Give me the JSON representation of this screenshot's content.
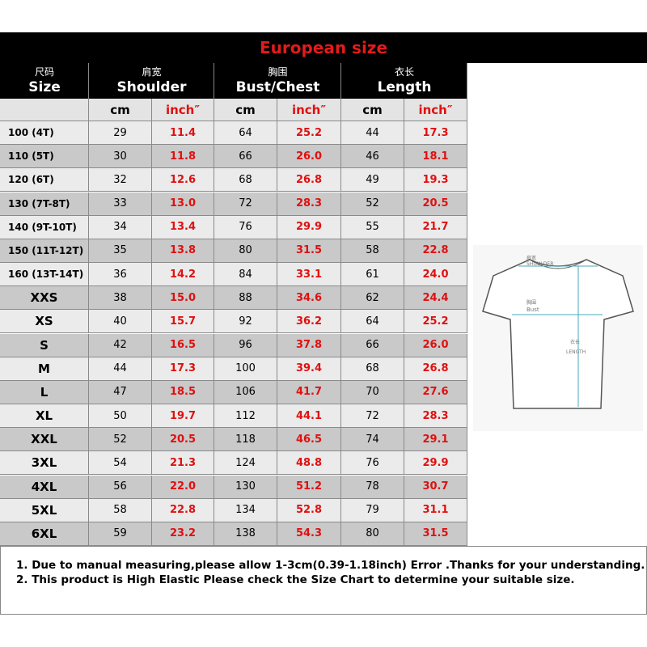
{
  "header": {
    "title": "European size"
  },
  "table": {
    "columns": [
      {
        "zh": "尺码",
        "en": "Size"
      },
      {
        "zh": "肩宽",
        "en": "Shoulder"
      },
      {
        "zh": "胸围",
        "en": "Bust/Chest"
      },
      {
        "zh": "衣长",
        "en": "Length"
      }
    ],
    "units": [
      "cm",
      "inch″",
      "cm",
      "inch″",
      "cm",
      "inch″"
    ],
    "rows": [
      [
        "100 (4T)",
        "29",
        "11.4",
        "64",
        "25.2",
        "44",
        "17.3"
      ],
      [
        "110 (5T)",
        "30",
        "11.8",
        "66",
        "26.0",
        "46",
        "18.1"
      ],
      [
        "120 (6T)",
        "32",
        "12.6",
        "68",
        "26.8",
        "49",
        "19.3"
      ],
      [
        "130 (7T-8T)",
        "33",
        "13.0",
        "72",
        "28.3",
        "52",
        "20.5"
      ],
      [
        "140 (9T-10T)",
        "34",
        "13.4",
        "76",
        "29.9",
        "55",
        "21.7"
      ],
      [
        "150 (11T-12T)",
        "35",
        "13.8",
        "80",
        "31.5",
        "58",
        "22.8"
      ],
      [
        "160 (13T-14T)",
        "36",
        "14.2",
        "84",
        "33.1",
        "61",
        "24.0"
      ],
      [
        "XXS",
        "38",
        "15.0",
        "88",
        "34.6",
        "62",
        "24.4"
      ],
      [
        "XS",
        "40",
        "15.7",
        "92",
        "36.2",
        "64",
        "25.2"
      ],
      [
        "S",
        "42",
        "16.5",
        "96",
        "37.8",
        "66",
        "26.0"
      ],
      [
        "M",
        "44",
        "17.3",
        "100",
        "39.4",
        "68",
        "26.8"
      ],
      [
        "L",
        "47",
        "18.5",
        "106",
        "41.7",
        "70",
        "27.6"
      ],
      [
        "XL",
        "50",
        "19.7",
        "112",
        "44.1",
        "72",
        "28.3"
      ],
      [
        "XXL",
        "52",
        "20.5",
        "118",
        "46.5",
        "74",
        "29.1"
      ],
      [
        "3XL",
        "54",
        "21.3",
        "124",
        "48.8",
        "76",
        "29.9"
      ],
      [
        "4XL",
        "56",
        "22.0",
        "130",
        "51.2",
        "78",
        "30.7"
      ],
      [
        "5XL",
        "58",
        "22.8",
        "134",
        "52.8",
        "79",
        "31.1"
      ],
      [
        "6XL",
        "59",
        "23.2",
        "138",
        "54.3",
        "80",
        "31.5"
      ]
    ]
  },
  "diagram": {
    "shoulder_zh": "肩宽",
    "shoulder": "SHOULDER",
    "bust_zh": "胸围",
    "bust": "Bust",
    "length_zh": "衣长",
    "length": "LENGTH"
  },
  "notes": [
    "1. Due to manual measuring,please allow 1-3cm(0.39-1.18inch) Error .Thanks for your understanding.",
    "2. This product is High Elastic Please check the Size Chart to determine your suitable size."
  ]
}
